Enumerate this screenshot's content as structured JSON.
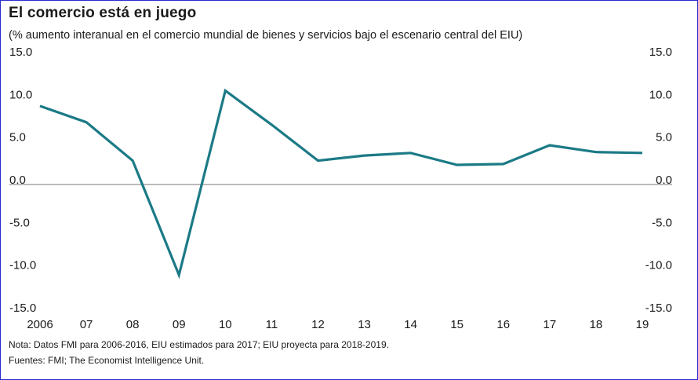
{
  "title": "El comercio está en juego",
  "subtitle": "(% aumento interanual en el comercio mundial de bienes y servicios bajo el escenario central del EIU)",
  "note": "Nota: Datos FMI para 2006-2016, EIU estimados para 2017; EIU proyecta para 2018-2019.",
  "source": "Fuentes: FMI; The Economist Intelligence Unit.",
  "colors": {
    "line": "#1b7a86",
    "zero_line": "#777777",
    "border": "#2a2ad0"
  },
  "chart_data": {
    "type": "line",
    "categories": [
      "2006",
      "07",
      "08",
      "09",
      "10",
      "11",
      "12",
      "13",
      "14",
      "15",
      "16",
      "17",
      "18",
      "19"
    ],
    "series": [
      {
        "values": [
          9.2,
          7.3,
          2.8,
          -10.6,
          11.0,
          7.0,
          2.8,
          3.4,
          3.7,
          2.3,
          2.4,
          4.6,
          3.8,
          3.7
        ]
      }
    ],
    "y_ticks": [
      {
        "value": 15,
        "label": "15.0"
      },
      {
        "value": 10,
        "label": "10.0"
      },
      {
        "value": 5,
        "label": "5.0"
      },
      {
        "value": 0,
        "label": "0.0"
      },
      {
        "value": -5,
        "label": "-5.0"
      },
      {
        "value": -10,
        "label": "-10.0"
      },
      {
        "value": -15,
        "label": "-15.0"
      }
    ],
    "ylim": [
      -15,
      15
    ],
    "grid": false,
    "zero_line": true,
    "y_axis": "both sides"
  }
}
